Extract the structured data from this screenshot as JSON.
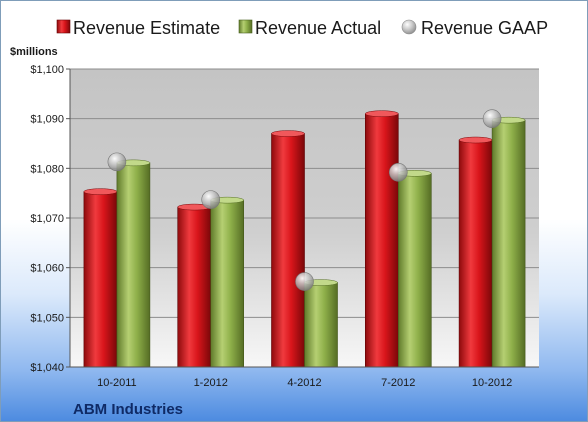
{
  "chart_data": {
    "type": "bar",
    "categories": [
      "10-2011",
      "1-2012",
      "4-2012",
      "7-2012",
      "10-2012"
    ],
    "series": [
      {
        "name": "Revenue Estimate",
        "kind": "bar",
        "values": [
          1075.3,
          1072.2,
          1087.0,
          1091.0,
          1085.7
        ]
      },
      {
        "name": "Revenue Actual",
        "kind": "bar",
        "values": [
          1081.1,
          1073.6,
          1057.0,
          1079.0,
          1089.7
        ]
      },
      {
        "name": "Revenue GAAP",
        "kind": "marker",
        "values": [
          1081.3,
          1073.7,
          1057.2,
          1079.2,
          1090.0
        ]
      }
    ],
    "unit_label": "$millions",
    "ylim": [
      1040,
      1100
    ],
    "yticks": [
      1040,
      1050,
      1060,
      1070,
      1080,
      1090,
      1100
    ],
    "ytick_labels": [
      "$1,040",
      "$1,050",
      "$1,060",
      "$1,070",
      "$1,080",
      "$1,090",
      "$1,100"
    ],
    "grid": true,
    "legend_position": "top",
    "company": "ABM Industries",
    "colors": {
      "estimate": "#d9151b",
      "actual": "#8fb04a",
      "gaap": "#b8b8b8",
      "plot_background": "#c9c9c9"
    }
  }
}
